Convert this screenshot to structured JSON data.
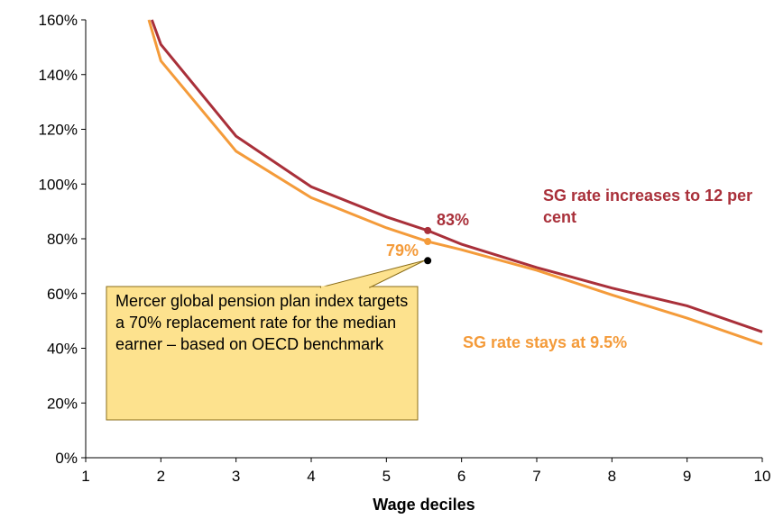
{
  "chart_data": {
    "type": "line",
    "x_label": "Wage deciles",
    "xlim": [
      1,
      10
    ],
    "xticks": [
      1,
      2,
      3,
      4,
      5,
      6,
      7,
      8,
      9,
      10
    ],
    "ylim": [
      0,
      160
    ],
    "yticks": [
      {
        "value": 0,
        "label": "0%"
      },
      {
        "value": 20,
        "label": "20%"
      },
      {
        "value": 40,
        "label": "40%"
      },
      {
        "value": 60,
        "label": "60%"
      },
      {
        "value": 80,
        "label": "80%"
      },
      {
        "value": 100,
        "label": "100%"
      },
      {
        "value": 120,
        "label": "120%"
      },
      {
        "value": 140,
        "label": "140%"
      },
      {
        "value": 160,
        "label": "160%"
      }
    ],
    "series": [
      {
        "name": "SG rate increases to 12 per cent",
        "color": "#a9303a",
        "x": [
          1.88,
          2,
          3,
          4,
          5,
          5.55,
          6,
          7,
          8,
          9,
          10
        ],
        "values": [
          160,
          151,
          117.5,
          99,
          88,
          83,
          78,
          69.5,
          62,
          55.5,
          46
        ],
        "marker": {
          "x": 5.55,
          "value": 83,
          "value_label": "83%"
        }
      },
      {
        "name": "SG rate stays at 9.5%",
        "color": "#f49b3a",
        "x": [
          1.84,
          2,
          3,
          4,
          5,
          5.55,
          6,
          7,
          8,
          9,
          10
        ],
        "values": [
          160,
          145,
          112,
          95,
          84,
          79,
          76,
          68.5,
          59.5,
          51,
          41.5
        ],
        "marker": {
          "x": 5.55,
          "value": 79,
          "value_label": "79%"
        }
      }
    ],
    "target_point": {
      "x": 5.55,
      "value": 72
    },
    "annotation": "Mercer global pension plan index targets a 70% replacement rate for the median earner – based on OECD benchmark"
  }
}
